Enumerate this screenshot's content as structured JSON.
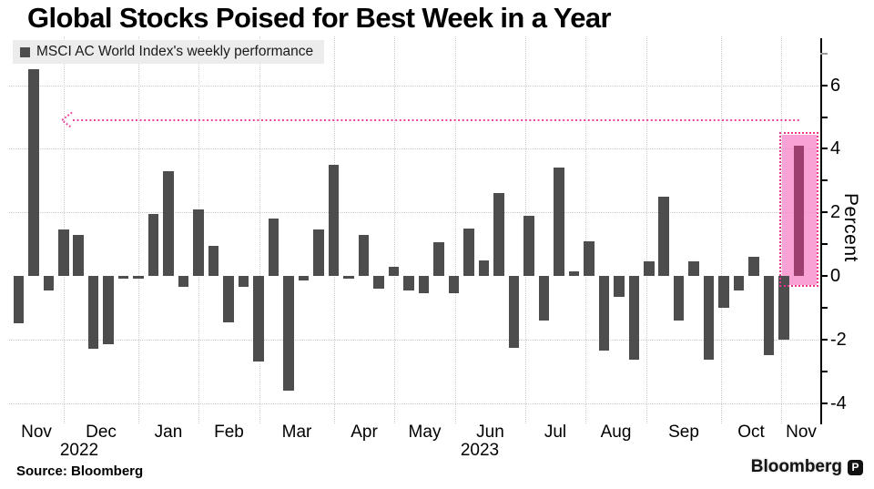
{
  "title": "Global Stocks Poised for Best Week in a Year",
  "legend": {
    "label": "MSCI AC World Index's weekly performance"
  },
  "source": "Source:  Bloomberg",
  "watermark": {
    "text": "Bloomberg",
    "logo": "P"
  },
  "colors": {
    "bar": "#4d4d4d",
    "bar_highlight": "#9c3f6f",
    "accent_pink": "#ee3d9c",
    "box_fill": "#f78bca",
    "box_border": "#e3368e",
    "grid": "#c9c9c9",
    "legend_bg": "#ececec",
    "axis": "#000000"
  },
  "chart_data": {
    "type": "bar",
    "title": "Global Stocks Poised for Best Week in a Year",
    "series_name": "MSCI AC World Index's weekly performance",
    "ylabel": "Percent",
    "ylim": [
      -4.6,
      7.5
    ],
    "y_tick_labels": [
      6,
      4,
      2,
      0,
      -2,
      -4
    ],
    "h_gridlines": [
      6,
      4,
      2,
      -2,
      -4
    ],
    "x_tick_months": [
      "Nov",
      "Dec",
      "Jan",
      "Feb",
      "Mar",
      "Apr",
      "May",
      "Jun",
      "Jul",
      "Aug",
      "Sep",
      "Oct",
      "Nov"
    ],
    "x_year_labels": [
      "2022",
      "2023"
    ],
    "values": [
      -1.5,
      6.5,
      -0.45,
      1.45,
      1.3,
      -2.3,
      -2.15,
      -0.1,
      -0.1,
      1.95,
      3.3,
      -0.35,
      2.1,
      0.95,
      -1.45,
      -0.35,
      -2.7,
      1.8,
      -3.6,
      -0.15,
      1.45,
      3.5,
      -0.1,
      1.3,
      -0.4,
      0.3,
      -0.45,
      -0.55,
      1.05,
      -0.55,
      1.5,
      0.5,
      2.6,
      -2.25,
      1.9,
      -1.4,
      3.4,
      0.15,
      1.1,
      -2.35,
      -0.65,
      -2.65,
      0.45,
      2.5,
      -1.4,
      0.45,
      -2.65,
      -1.0,
      -0.45,
      0.6,
      -2.5,
      -2.0,
      4.1
    ],
    "highlight_last": true,
    "highlight_box": {
      "top": 4.45,
      "bottom": -0.3
    },
    "annotation": {
      "kind": "dotted-arrow-left",
      "y": 4.9
    },
    "grid": true,
    "legend_position": "top-left"
  }
}
